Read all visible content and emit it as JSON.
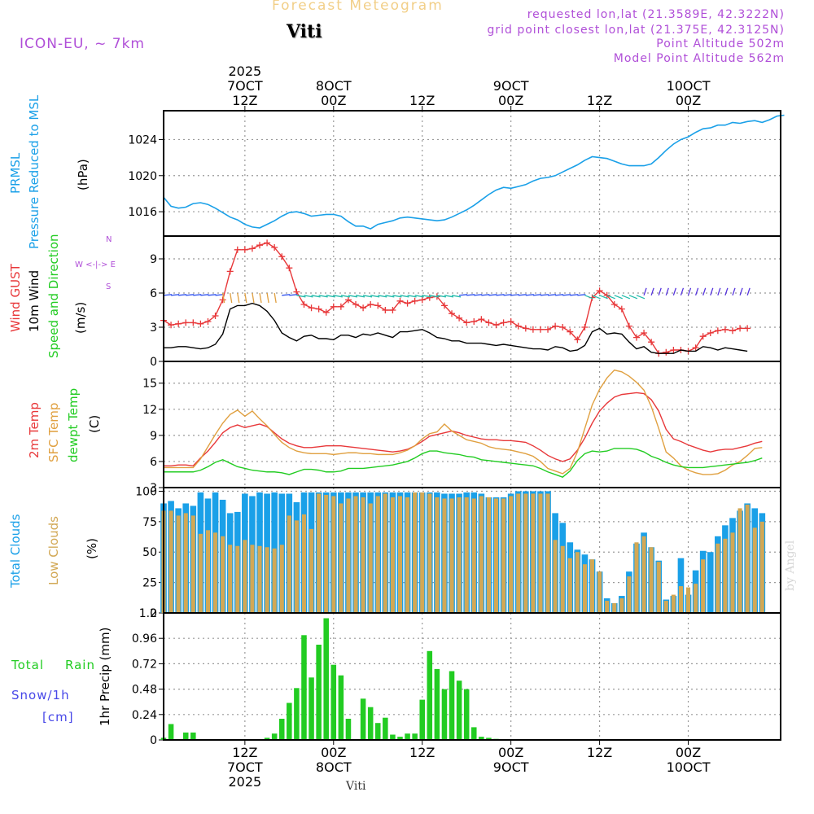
{
  "header": {
    "title": "Forecast Meteogram",
    "location": "Viti",
    "model": "ICON-EU, ~ 7km",
    "requested": "requested lon,lat (21.3589E, 42.3222N)",
    "grid_point": "grid point closest lon,lat (21.375E, 42.3125N)",
    "point_alt": "Point Altitude 502m",
    "model_alt": "Model Point Altitude 562m",
    "watermark": "by Angel",
    "bottom_label": "Viti"
  },
  "colors": {
    "pressure": "#1aa0e8",
    "gust": "#e8383a",
    "wind": "#000000",
    "temp2m": "#e8383a",
    "sfc": "#e0a040",
    "dewpt": "#22cc22",
    "total_clouds": "#1aa0e8",
    "low_clouds": "#d2a855",
    "rain": "#22cc22",
    "snow": "#4848e8",
    "label_purple": "#b04fd8"
  },
  "time_axis": {
    "top_labels": [
      {
        "t": 12,
        "lines": [
          "2025",
          "7OCT",
          "12Z"
        ]
      },
      {
        "t": 24,
        "lines": [
          "",
          "8OCT",
          "00Z"
        ]
      },
      {
        "t": 36,
        "lines": [
          "",
          "",
          "12Z"
        ]
      },
      {
        "t": 48,
        "lines": [
          "",
          "9OCT",
          "00Z"
        ]
      },
      {
        "t": 60,
        "lines": [
          "",
          "",
          "12Z"
        ]
      },
      {
        "t": 72,
        "lines": [
          "",
          "10OCT",
          "00Z"
        ]
      }
    ],
    "bottom_labels": [
      {
        "t": 12,
        "lines": [
          "12Z",
          "7OCT",
          "2025"
        ]
      },
      {
        "t": 24,
        "lines": [
          "00Z",
          "8OCT",
          ""
        ]
      },
      {
        "t": 36,
        "lines": [
          "12Z",
          "",
          ""
        ]
      },
      {
        "t": 48,
        "lines": [
          "00Z",
          "9OCT",
          ""
        ]
      },
      {
        "t": 60,
        "lines": [
          "12Z",
          "",
          ""
        ]
      },
      {
        "t": 72,
        "lines": [
          "00Z",
          "10OCT",
          ""
        ]
      }
    ]
  },
  "panels": {
    "pressure": {
      "labels": [
        "PRMSL",
        "Pressure Reduced to MSL"
      ],
      "unit": "(hPa)"
    },
    "wind": {
      "labels": [
        "Wind GUST",
        "10m Wind",
        "Speed and Direction"
      ],
      "unit": "(m/s)",
      "compass": [
        "N",
        "W <-|-> E",
        "S"
      ]
    },
    "temp": {
      "labels": [
        "2m Temp",
        "SFC Temp",
        "dewpt Temp"
      ],
      "unit": "(C)"
    },
    "clouds": {
      "labels": [
        "Total Clouds",
        "Low Clouds"
      ],
      "unit": "(%)"
    },
    "precip": {
      "labels": [
        "Total",
        "Rain",
        "Snow/1h",
        "[cm]"
      ],
      "unit": "1hr Precip (mm)"
    }
  },
  "chart_data": [
    {
      "type": "line",
      "title": "PRMSL Pressure Reduced to MSL",
      "ylabel": "hPa",
      "ylim": [
        1013.3,
        1027.2
      ],
      "yticks": [
        1016,
        1020,
        1024
      ],
      "series": [
        {
          "name": "PRMSL",
          "x_start": 1,
          "x_step": 1,
          "values": [
            1017.6,
            1016.6,
            1016.4,
            1016.5,
            1016.9,
            1017.0,
            1016.8,
            1016.4,
            1015.9,
            1015.4,
            1015.1,
            1014.6,
            1014.3,
            1014.2,
            1014.6,
            1015.0,
            1015.5,
            1015.9,
            1016.0,
            1015.8,
            1015.5,
            1015.6,
            1015.7,
            1015.7,
            1015.5,
            1014.9,
            1014.4,
            1014.4,
            1014.1,
            1014.6,
            1014.8,
            1015.0,
            1015.3,
            1015.4,
            1015.3,
            1015.2,
            1015.1,
            1015.0,
            1015.1,
            1015.4,
            1015.8,
            1016.2,
            1016.7,
            1017.3,
            1017.9,
            1018.4,
            1018.7,
            1018.6,
            1018.8,
            1019.0,
            1019.4,
            1019.7,
            1019.8,
            1020.0,
            1020.4,
            1020.8,
            1021.2,
            1021.7,
            1022.1,
            1022.0,
            1021.9,
            1021.6,
            1021.3,
            1021.1,
            1021.1,
            1021.1,
            1021.3,
            1022.0,
            1022.8,
            1023.5,
            1024.0,
            1024.3,
            1024.8,
            1025.2,
            1025.3,
            1025.6,
            1025.6,
            1025.9,
            1025.8,
            1026.0,
            1026.1,
            1025.9,
            1026.2,
            1026.6,
            1026.7
          ]
        }
      ]
    },
    {
      "type": "line",
      "title": "Wind GUST / 10m Wind Speed and Direction",
      "ylabel": "m/s",
      "ylim": [
        0,
        11
      ],
      "yticks": [
        0,
        3,
        6,
        9
      ],
      "series": [
        {
          "name": "Wind GUST",
          "x_start": 1,
          "x_step": 1,
          "values": [
            3.6,
            3.2,
            3.3,
            3.4,
            3.4,
            3.3,
            3.5,
            4.0,
            5.4,
            7.9,
            9.8,
            9.8,
            9.9,
            10.2,
            10.4,
            10.0,
            9.2,
            8.2,
            6.1,
            5.0,
            4.7,
            4.6,
            4.3,
            4.8,
            4.8,
            5.4,
            5.0,
            4.7,
            5.0,
            4.9,
            4.5,
            4.5,
            5.3,
            5.1,
            5.3,
            5.4,
            5.6,
            5.7,
            4.9,
            4.2,
            3.8,
            3.4,
            3.5,
            3.7,
            3.4,
            3.2,
            3.4,
            3.5,
            3.1,
            2.9,
            2.8,
            2.8,
            2.8,
            3.1,
            3.0,
            2.6,
            1.9,
            3.0,
            5.6,
            6.2,
            5.8,
            5.0,
            4.6,
            3.1,
            2.1,
            2.5,
            1.7,
            0.7,
            0.8,
            1.0,
            1.0,
            0.9,
            1.2,
            2.2,
            2.5,
            2.7,
            2.8,
            2.7,
            2.9,
            2.9
          ]
        },
        {
          "name": "10m Wind",
          "x_start": 1,
          "x_step": 1,
          "values": [
            1.2,
            1.2,
            1.3,
            1.3,
            1.2,
            1.1,
            1.2,
            1.5,
            2.4,
            4.6,
            4.9,
            4.9,
            5.1,
            4.9,
            4.4,
            3.6,
            2.5,
            2.1,
            1.8,
            2.2,
            2.3,
            2.0,
            2.0,
            1.9,
            2.3,
            2.3,
            2.1,
            2.4,
            2.3,
            2.5,
            2.3,
            2.1,
            2.6,
            2.6,
            2.7,
            2.8,
            2.5,
            2.1,
            2.0,
            1.8,
            1.8,
            1.6,
            1.6,
            1.6,
            1.5,
            1.4,
            1.5,
            1.4,
            1.3,
            1.2,
            1.1,
            1.1,
            1.0,
            1.3,
            1.2,
            0.9,
            1.0,
            1.4,
            2.6,
            2.9,
            2.4,
            2.5,
            2.4,
            1.7,
            1.1,
            1.3,
            0.8,
            0.7,
            0.7,
            0.7,
            1.0,
            0.9,
            0.9,
            1.3,
            1.2,
            1.0,
            1.2,
            1.1,
            1.0,
            0.9
          ]
        }
      ]
    },
    {
      "type": "line",
      "title": "2m Temp / SFC Temp / dewpt Temp",
      "ylabel": "C",
      "ylim": [
        3,
        17.5
      ],
      "yticks": [
        3,
        6,
        9,
        12,
        15
      ],
      "series": [
        {
          "name": "2m Temp",
          "x_start": 1,
          "x_step": 1,
          "values": [
            5.5,
            5.5,
            5.6,
            5.6,
            5.5,
            6.4,
            7.2,
            8.2,
            9.3,
            9.9,
            10.2,
            9.9,
            10.1,
            10.3,
            10.0,
            9.3,
            8.6,
            8.1,
            7.8,
            7.6,
            7.6,
            7.7,
            7.8,
            7.8,
            7.8,
            7.7,
            7.6,
            7.5,
            7.4,
            7.3,
            7.2,
            7.1,
            7.2,
            7.4,
            7.8,
            8.3,
            8.9,
            9.1,
            9.3,
            9.5,
            9.3,
            9.0,
            8.8,
            8.6,
            8.5,
            8.5,
            8.4,
            8.4,
            8.3,
            8.2,
            7.8,
            7.3,
            6.7,
            6.3,
            6.0,
            6.3,
            7.3,
            8.7,
            10.4,
            11.8,
            12.7,
            13.4,
            13.7,
            13.8,
            13.9,
            13.8,
            13.1,
            11.8,
            9.7,
            8.6,
            8.3,
            7.9,
            7.6,
            7.3,
            7.1,
            7.3,
            7.4,
            7.4,
            7.6,
            7.8,
            8.1,
            8.3
          ]
        },
        {
          "name": "SFC Temp",
          "x_start": 1,
          "x_step": 1,
          "values": [
            5.3,
            5.3,
            5.3,
            5.3,
            5.3,
            6.3,
            7.7,
            9.1,
            10.4,
            11.4,
            11.9,
            11.2,
            11.8,
            10.9,
            10.1,
            9.1,
            8.2,
            7.6,
            7.2,
            7.0,
            6.9,
            6.9,
            6.9,
            6.8,
            6.9,
            7.0,
            7.0,
            6.9,
            6.9,
            6.8,
            6.8,
            6.8,
            7.0,
            7.3,
            7.8,
            8.6,
            9.2,
            9.4,
            10.3,
            9.5,
            9.0,
            8.5,
            8.3,
            8.1,
            7.7,
            7.5,
            7.4,
            7.3,
            7.1,
            6.9,
            6.6,
            6.0,
            5.2,
            4.9,
            4.6,
            5.2,
            7.1,
            9.8,
            12.5,
            14.3,
            15.6,
            16.5,
            16.3,
            15.8,
            15.1,
            14.2,
            12.3,
            9.8,
            7.1,
            6.4,
            5.5,
            5.0,
            4.7,
            4.5,
            4.5,
            4.6,
            5.0,
            5.6,
            6.0,
            6.7,
            7.5,
            7.6
          ]
        },
        {
          "name": "dewpt Temp",
          "x_start": 1,
          "x_step": 1,
          "values": [
            4.8,
            4.8,
            4.8,
            4.8,
            4.8,
            5.0,
            5.4,
            5.9,
            6.2,
            5.8,
            5.4,
            5.2,
            5.0,
            4.9,
            4.8,
            4.8,
            4.7,
            4.5,
            4.8,
            5.1,
            5.1,
            5.0,
            4.8,
            4.8,
            4.9,
            5.2,
            5.2,
            5.2,
            5.3,
            5.4,
            5.5,
            5.6,
            5.8,
            6.0,
            6.4,
            6.9,
            7.2,
            7.2,
            7.0,
            6.9,
            6.8,
            6.6,
            6.5,
            6.2,
            6.1,
            6.0,
            5.9,
            5.8,
            5.7,
            5.6,
            5.5,
            5.2,
            4.8,
            4.5,
            4.2,
            4.9,
            6.1,
            6.9,
            7.2,
            7.1,
            7.2,
            7.5,
            7.5,
            7.5,
            7.4,
            7.1,
            6.6,
            6.3,
            5.9,
            5.6,
            5.4,
            5.3,
            5.3,
            5.3,
            5.4,
            5.5,
            5.6,
            5.7,
            5.8,
            5.9,
            6.1,
            6.4
          ]
        }
      ]
    },
    {
      "type": "bar",
      "title": "Total Clouds / Low Clouds",
      "ylabel": "%",
      "ylim": [
        0,
        103
      ],
      "yticks": [
        0,
        25,
        50,
        75,
        100
      ],
      "series": [
        {
          "name": "Total Clouds",
          "x_start": 1,
          "x_step": 1,
          "values": [
            90,
            92,
            86,
            90,
            88,
            99,
            94,
            99,
            93,
            82,
            83,
            98,
            96,
            99,
            98,
            99,
            98,
            98,
            91,
            99,
            99,
            99,
            99,
            99,
            99,
            99,
            99,
            99,
            99,
            99,
            99,
            99,
            99,
            99,
            99,
            99,
            99,
            99,
            98,
            98,
            98,
            99,
            99,
            98,
            95,
            95,
            95,
            98,
            100,
            100,
            100,
            100,
            100,
            82,
            74,
            58,
            52,
            48,
            44,
            34,
            12,
            8,
            14,
            34,
            57,
            66,
            54,
            43,
            11,
            14,
            45,
            15,
            35,
            51,
            50,
            63,
            72,
            78,
            84,
            90,
            86,
            82
          ]
        },
        {
          "name": "Low Clouds",
          "x_start": 1,
          "x_step": 1,
          "values": [
            84,
            84,
            80,
            82,
            80,
            65,
            68,
            66,
            63,
            56,
            55,
            60,
            56,
            55,
            54,
            53,
            56,
            80,
            76,
            81,
            69,
            98,
            97,
            96,
            90,
            94,
            96,
            95,
            90,
            96,
            98,
            95,
            96,
            95,
            99,
            99,
            98,
            95,
            94,
            94,
            95,
            95,
            94,
            96,
            95,
            94,
            94,
            96,
            98,
            98,
            98,
            98,
            98,
            60,
            55,
            45,
            50,
            40,
            44,
            34,
            10,
            8,
            12,
            30,
            58,
            63,
            54,
            42,
            10,
            15,
            22,
            21,
            24,
            44,
            0,
            57,
            61,
            66,
            86,
            89,
            70,
            75
          ]
        }
      ]
    },
    {
      "type": "bar",
      "title": "1hr Precip (mm) Total Rain / Snow",
      "ylabel": "1hr Precip (mm)",
      "ylim": [
        0,
        1.2
      ],
      "yticks": [
        0,
        0.24,
        0.48,
        0.72,
        0.96,
        1.2
      ],
      "series": [
        {
          "name": "Total Rain",
          "x_start": 1,
          "x_step": 1,
          "values": [
            0.02,
            0.15,
            0,
            0.07,
            0.07,
            0,
            0,
            0,
            0,
            0,
            0,
            0,
            0,
            0,
            0.02,
            0.06,
            0.2,
            0.35,
            0.49,
            0.99,
            0.59,
            0.9,
            1.15,
            0.71,
            0.61,
            0.2,
            0,
            0.39,
            0.31,
            0.16,
            0.21,
            0.05,
            0.03,
            0.06,
            0.06,
            0.38,
            0.84,
            0.67,
            0.48,
            0.65,
            0.56,
            0.48,
            0.12,
            0.03,
            0.02,
            0.01,
            0,
            0,
            0,
            0,
            0,
            0,
            0,
            0,
            0,
            0,
            0,
            0,
            0,
            0,
            0,
            0,
            0,
            0,
            0,
            0,
            0,
            0,
            0,
            0,
            0,
            0,
            0,
            0,
            0,
            0,
            0,
            0,
            0,
            0,
            0,
            0
          ]
        }
      ]
    }
  ]
}
